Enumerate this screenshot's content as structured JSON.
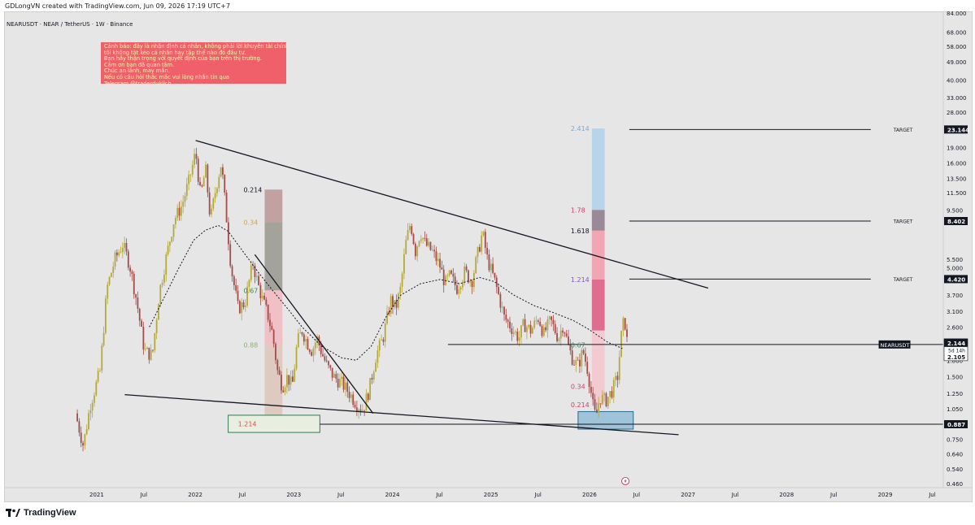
{
  "header": {
    "credit": "GDLongVN created with TradingView.com, Jun 09, 2026 17:19 UTC+7"
  },
  "footer": {
    "brand": "TradingView"
  },
  "disclaimer": {
    "lines": [
      "Cảnh báo: đây là nhận định cá nhân, không phải lời khuyên tài chính,",
      "tôi không tặt kèo cá nhân hay tập thể nào đó đầu tư.",
      "Bạn hãy thận trọng với quyết định của bạn trên thị trường.",
      "Cảm ơn bạn đã quan tâm.",
      "Chúc an lành, may mắn.",
      "Nếu có câu hỏi thắc mắc vui lòng nhắn tin qua",
      "Telegram @traderduklich"
    ]
  },
  "colors": {
    "background": "#e6e6e6",
    "candle_up": "#b5a93a",
    "candle_down": "#a34c4a",
    "disclaimer_bg": "#f0606a",
    "fib_blue_zone": "#b9d4ea",
    "fib_pink_zone": "#f1a7b3",
    "fib_magenta_zone": "#df6d92",
    "fib_purple_zone": "#9a8a97",
    "box_green_border": "#2e7d4f",
    "box_blue_fill": "#9fc3d8"
  },
  "chart_data": {
    "type": "candlestick",
    "title": "NEARUSDT · NEAR / TetherUS · 1W · Binance",
    "symbol": "NEARUSDT",
    "xlabel": "",
    "ylabel": "",
    "y_scale": "log",
    "ylim": [
      0.43,
      84
    ],
    "xlim": [
      "2020-10-01",
      "2029-07-31"
    ],
    "grid": false,
    "x_ticks": [
      {
        "label": "2021",
        "t": 2021.0
      },
      {
        "label": "Jul",
        "t": 2021.5
      },
      {
        "label": "2022",
        "t": 2022.0
      },
      {
        "label": "Jul",
        "t": 2022.5
      },
      {
        "label": "2023",
        "t": 2023.0
      },
      {
        "label": "Jul",
        "t": 2023.5
      },
      {
        "label": "2024",
        "t": 2024.0
      },
      {
        "label": "Jul",
        "t": 2024.5
      },
      {
        "label": "2025",
        "t": 2025.0
      },
      {
        "label": "Jul",
        "t": 2025.5
      },
      {
        "label": "2026",
        "t": 2026.0
      },
      {
        "label": "Jul",
        "t": 2026.5
      },
      {
        "label": "2027",
        "t": 2027.0
      },
      {
        "label": "Jul",
        "t": 2027.5
      },
      {
        "label": "2028",
        "t": 2028.0
      },
      {
        "label": "Jul",
        "t": 2028.5
      },
      {
        "label": "2029",
        "t": 2029.0
      },
      {
        "label": "Jul",
        "t": 2029.5
      }
    ],
    "y_ticks": [
      {
        "label": "84.000",
        "v": 84
      },
      {
        "label": "68.000",
        "v": 68
      },
      {
        "label": "58.000",
        "v": 58
      },
      {
        "label": "49.000",
        "v": 49
      },
      {
        "label": "40.000",
        "v": 40
      },
      {
        "label": "33.000",
        "v": 33
      },
      {
        "label": "28.000",
        "v": 28
      },
      {
        "label": "19.000",
        "v": 19
      },
      {
        "label": "16.000",
        "v": 16
      },
      {
        "label": "13.500",
        "v": 13.5
      },
      {
        "label": "11.500",
        "v": 11.5
      },
      {
        "label": "9.500",
        "v": 9.5
      },
      {
        "label": "5.500",
        "v": 5.5
      },
      {
        "label": "5.000",
        "v": 5.0
      },
      {
        "label": "3.700",
        "v": 3.7
      },
      {
        "label": "3.100",
        "v": 3.1
      },
      {
        "label": "2.600",
        "v": 2.6
      },
      {
        "label": "1.800",
        "v": 1.8
      },
      {
        "label": "1.500",
        "v": 1.5
      },
      {
        "label": "1.250",
        "v": 1.25
      },
      {
        "label": "1.050",
        "v": 1.05
      },
      {
        "label": "0.750",
        "v": 0.75
      },
      {
        "label": "0.640",
        "v": 0.64
      },
      {
        "label": "0.540",
        "v": 0.54
      },
      {
        "label": "0.460",
        "v": 0.46
      }
    ],
    "price_path": [
      [
        2020.8,
        1.0
      ],
      [
        2020.88,
        0.7
      ],
      [
        2020.95,
        1.1
      ],
      [
        2021.05,
        1.6
      ],
      [
        2021.12,
        4.0
      ],
      [
        2021.2,
        5.5
      ],
      [
        2021.28,
        6.5
      ],
      [
        2021.35,
        5.2
      ],
      [
        2021.42,
        3.5
      ],
      [
        2021.5,
        2.0
      ],
      [
        2021.58,
        1.9
      ],
      [
        2021.65,
        3.8
      ],
      [
        2021.72,
        5.6
      ],
      [
        2021.8,
        8.5
      ],
      [
        2021.88,
        10.0
      ],
      [
        2021.95,
        13.0
      ],
      [
        2022.02,
        18.0
      ],
      [
        2022.07,
        11.0
      ],
      [
        2022.12,
        15.0
      ],
      [
        2022.17,
        8.5
      ],
      [
        2022.23,
        12.5
      ],
      [
        2022.28,
        16.0
      ],
      [
        2022.33,
        9.0
      ],
      [
        2022.38,
        5.0
      ],
      [
        2022.45,
        3.2
      ],
      [
        2022.52,
        3.4
      ],
      [
        2022.6,
        5.3
      ],
      [
        2022.65,
        4.2
      ],
      [
        2022.7,
        3.5
      ],
      [
        2022.75,
        3.0
      ],
      [
        2022.8,
        2.4
      ],
      [
        2022.85,
        1.6
      ],
      [
        2022.9,
        1.35
      ],
      [
        2022.95,
        1.5
      ],
      [
        2023.0,
        1.35
      ],
      [
        2023.05,
        2.2
      ],
      [
        2023.1,
        2.5
      ],
      [
        2023.15,
        2.2
      ],
      [
        2023.2,
        2.0
      ],
      [
        2023.25,
        2.3
      ],
      [
        2023.3,
        1.95
      ],
      [
        2023.35,
        1.7
      ],
      [
        2023.42,
        1.5
      ],
      [
        2023.5,
        1.4
      ],
      [
        2023.58,
        1.25
      ],
      [
        2023.66,
        1.1
      ],
      [
        2023.72,
        1.05
      ],
      [
        2023.78,
        1.3
      ],
      [
        2023.85,
        1.9
      ],
      [
        2023.92,
        2.3
      ],
      [
        2024.0,
        3.5
      ],
      [
        2024.05,
        3.2
      ],
      [
        2024.1,
        4.0
      ],
      [
        2024.15,
        6.5
      ],
      [
        2024.2,
        8.3
      ],
      [
        2024.25,
        6.0
      ],
      [
        2024.3,
        7.5
      ],
      [
        2024.35,
        6.5
      ],
      [
        2024.42,
        6.0
      ],
      [
        2024.5,
        5.1
      ],
      [
        2024.55,
        4.2
      ],
      [
        2024.6,
        4.6
      ],
      [
        2024.67,
        4.0
      ],
      [
        2024.75,
        4.8
      ],
      [
        2024.82,
        4.3
      ],
      [
        2024.88,
        5.8
      ],
      [
        2024.93,
        7.4
      ],
      [
        2024.98,
        5.5
      ],
      [
        2025.05,
        4.4
      ],
      [
        2025.1,
        3.6
      ],
      [
        2025.15,
        2.9
      ],
      [
        2025.22,
        2.6
      ],
      [
        2025.3,
        2.3
      ],
      [
        2025.35,
        2.7
      ],
      [
        2025.42,
        2.5
      ],
      [
        2025.5,
        2.9
      ],
      [
        2025.55,
        2.4
      ],
      [
        2025.62,
        2.8
      ],
      [
        2025.7,
        2.3
      ],
      [
        2025.75,
        2.7
      ],
      [
        2025.8,
        2.1
      ],
      [
        2025.85,
        1.8
      ],
      [
        2025.9,
        1.7
      ],
      [
        2025.95,
        2.0
      ],
      [
        2026.0,
        1.6
      ],
      [
        2026.05,
        1.1
      ],
      [
        2026.08,
        0.95
      ],
      [
        2026.12,
        1.2
      ],
      [
        2026.18,
        1.15
      ],
      [
        2026.25,
        1.3
      ],
      [
        2026.3,
        1.5
      ],
      [
        2026.34,
        2.4
      ],
      [
        2026.37,
        2.9
      ],
      [
        2026.4,
        2.15
      ]
    ],
    "moving_average": [
      [
        2021.55,
        2.6
      ],
      [
        2021.7,
        3.6
      ],
      [
        2021.85,
        5.0
      ],
      [
        2022.0,
        6.8
      ],
      [
        2022.12,
        7.6
      ],
      [
        2022.25,
        8.0
      ],
      [
        2022.35,
        7.5
      ],
      [
        2022.5,
        6.0
      ],
      [
        2022.65,
        4.8
      ],
      [
        2022.8,
        3.9
      ],
      [
        2022.95,
        3.2
      ],
      [
        2023.1,
        2.6
      ],
      [
        2023.3,
        2.1
      ],
      [
        2023.5,
        1.85
      ],
      [
        2023.65,
        1.8
      ],
      [
        2023.8,
        2.1
      ],
      [
        2023.95,
        2.9
      ],
      [
        2024.1,
        3.7
      ],
      [
        2024.3,
        4.2
      ],
      [
        2024.5,
        4.4
      ],
      [
        2024.7,
        4.2
      ],
      [
        2024.9,
        4.5
      ],
      [
        2025.05,
        4.3
      ],
      [
        2025.25,
        3.7
      ],
      [
        2025.45,
        3.3
      ],
      [
        2025.65,
        3.05
      ],
      [
        2025.85,
        2.8
      ],
      [
        2026.0,
        2.55
      ],
      [
        2026.2,
        2.2
      ],
      [
        2026.35,
        2.05
      ]
    ],
    "last_price": {
      "symbol": "NEARUSDT",
      "price": "2.144",
      "countdown": "5d 14h",
      "second": "2.105"
    },
    "targets": [
      {
        "label": "TARGET",
        "value": "23.144",
        "v": 23.144
      },
      {
        "label": "TARGET",
        "value": "8.402",
        "v": 8.402
      },
      {
        "label": "TARGET",
        "value": "4.420",
        "v": 4.42
      }
    ],
    "support_level": {
      "value": "0.887",
      "v": 0.887
    },
    "horizontal_line": {
      "v": 2.144
    },
    "fib_left": {
      "labels": [
        {
          "text": "0.214",
          "v": 11.9,
          "color": "#131722"
        },
        {
          "text": "0.34",
          "v": 8.3,
          "color": "#e0a040"
        },
        {
          "text": "0.67",
          "v": 3.9,
          "color": "#3a8a55"
        },
        {
          "text": "0.88",
          "v": 2.13,
          "color": "#8fb070"
        },
        {
          "text": "1.214",
          "v": 0.89,
          "color": "#e04c4c"
        }
      ]
    },
    "fib_right": {
      "labels": [
        {
          "text": "2.414",
          "v": 23.4,
          "color": "#7aa9d3"
        },
        {
          "text": "1.78",
          "v": 9.5,
          "color": "#d0406c"
        },
        {
          "text": "1.618",
          "v": 7.55,
          "color": "#131722"
        },
        {
          "text": "1.214",
          "v": 4.4,
          "color": "#7a5cc0"
        },
        {
          "text": "0.67",
          "v": 2.13,
          "color": "#3a8a55"
        },
        {
          "text": "0.34",
          "v": 1.35,
          "color": "#d0406c"
        },
        {
          "text": "0.214",
          "v": 1.1,
          "color": "#d0406c"
        }
      ]
    },
    "x_axis_icon": "lightning-icon"
  }
}
